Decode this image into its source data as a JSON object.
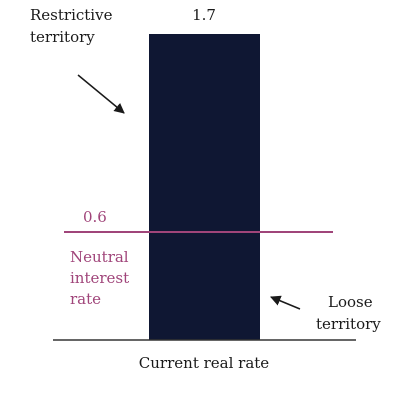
{
  "chart_data": {
    "type": "bar",
    "categories": [
      "Current real rate"
    ],
    "values": [
      1.7
    ],
    "data_labels": [
      "1.7"
    ],
    "bar_color": "#0f1733",
    "reference_line": {
      "value": 0.6,
      "label": "0.6",
      "caption_lines": [
        "Neutral",
        "interest",
        "rate"
      ],
      "color": "#a0457a"
    },
    "annotations": {
      "restrictive": [
        "Restrictive",
        "territory"
      ],
      "loose": [
        "Loose",
        "territory"
      ]
    },
    "ylim": [
      0,
      1.7
    ],
    "grid": false
  }
}
